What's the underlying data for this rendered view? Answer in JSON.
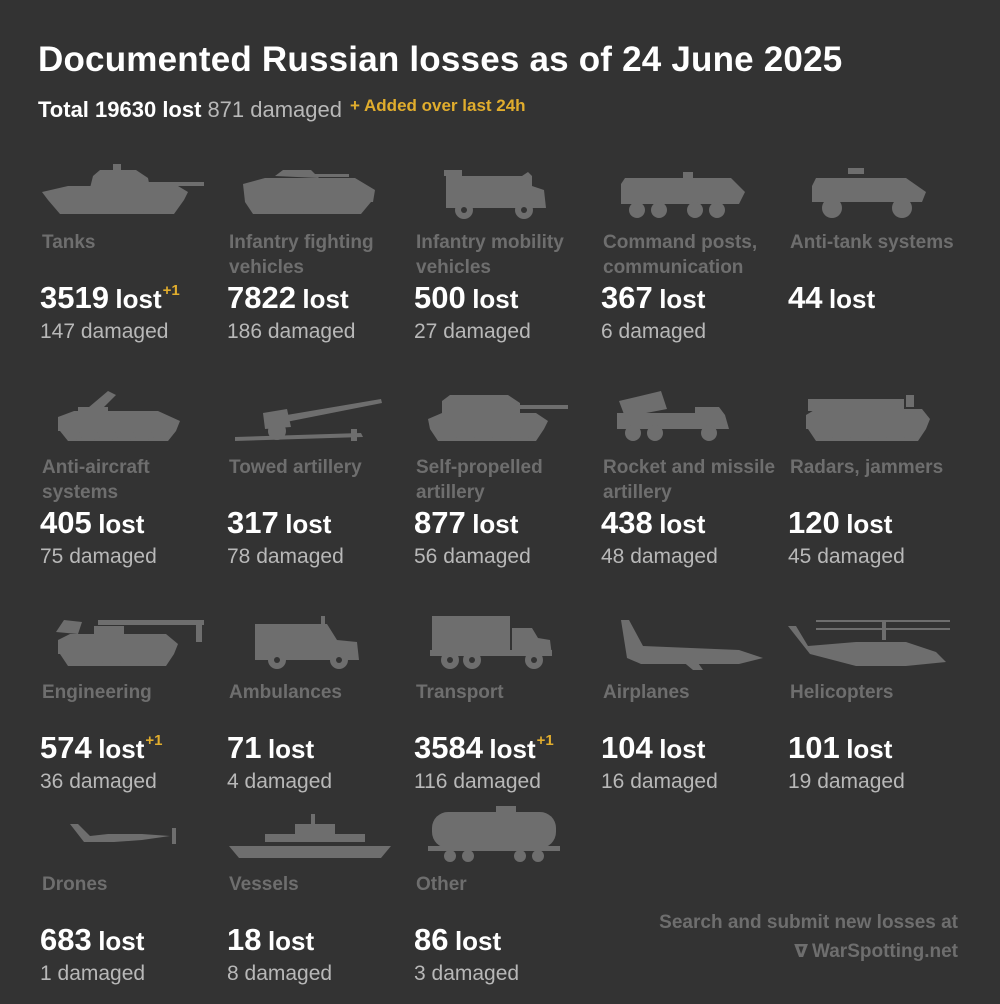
{
  "header": {
    "title": "Documented Russian losses as of 24 June 2025",
    "total_label": "Total 19630 lost",
    "total_damaged": "871 damaged",
    "added_note": "+ Added over last 24h"
  },
  "colors": {
    "background": "#333333",
    "text": "#ffffff",
    "muted": "#b8b8b8",
    "icon": "#6e6e6e",
    "accent": "#e1ad2d"
  },
  "categories": [
    {
      "label": "Tanks",
      "lost": "3519",
      "lost_word": "lost",
      "added": "+1",
      "damaged": "147 damaged",
      "icon": "tank-icon"
    },
    {
      "label": "Infantry fighting vehicles",
      "lost": "7822",
      "lost_word": "lost",
      "added": "",
      "damaged": "186 damaged",
      "icon": "ifv-icon"
    },
    {
      "label": "Infantry mobility vehicles",
      "lost": "500",
      "lost_word": "lost",
      "added": "",
      "damaged": "27 damaged",
      "icon": "imv-icon"
    },
    {
      "label": "Command posts, communication",
      "lost": "367",
      "lost_word": "lost",
      "added": "",
      "damaged": "6 damaged",
      "icon": "command-post-icon"
    },
    {
      "label": "Anti-tank systems",
      "lost": "44",
      "lost_word": "lost",
      "added": "",
      "damaged": "",
      "icon": "anti-tank-icon"
    },
    {
      "label": "Anti-aircraft systems",
      "lost": "405",
      "lost_word": "lost",
      "added": "",
      "damaged": "75 damaged",
      "icon": "anti-aircraft-icon"
    },
    {
      "label": "Towed artillery",
      "lost": "317",
      "lost_word": "lost",
      "added": "",
      "damaged": "78 damaged",
      "icon": "towed-artillery-icon"
    },
    {
      "label": "Self-propelled artillery",
      "lost": "877",
      "lost_word": "lost",
      "added": "",
      "damaged": "56 damaged",
      "icon": "spg-icon"
    },
    {
      "label": "Rocket and missile artillery",
      "lost": "438",
      "lost_word": "lost",
      "added": "",
      "damaged": "48 damaged",
      "icon": "rocket-artillery-icon"
    },
    {
      "label": "Radars, jammers",
      "lost": "120",
      "lost_word": "lost",
      "added": "",
      "damaged": "45 damaged",
      "icon": "radar-icon"
    },
    {
      "label": "Engineering",
      "lost": "574",
      "lost_word": "lost",
      "added": "+1",
      "damaged": "36 damaged",
      "icon": "engineering-icon"
    },
    {
      "label": "Ambulances",
      "lost": "71",
      "lost_word": "lost",
      "added": "",
      "damaged": "4 damaged",
      "icon": "ambulance-icon"
    },
    {
      "label": "Transport",
      "lost": "3584",
      "lost_word": "lost",
      "added": "+1",
      "damaged": "116 damaged",
      "icon": "truck-icon"
    },
    {
      "label": "Airplanes",
      "lost": "104",
      "lost_word": "lost",
      "added": "",
      "damaged": "16 damaged",
      "icon": "airplane-icon"
    },
    {
      "label": "Helicopters",
      "lost": "101",
      "lost_word": "lost",
      "added": "",
      "damaged": "19 damaged",
      "icon": "helicopter-icon"
    },
    {
      "label": "Drones",
      "lost": "683",
      "lost_word": "lost",
      "added": "",
      "damaged": "1 damaged",
      "icon": "drone-icon"
    },
    {
      "label": "Vessels",
      "lost": "18",
      "lost_word": "lost",
      "added": "",
      "damaged": "8 damaged",
      "icon": "ship-icon"
    },
    {
      "label": "Other",
      "lost": "86",
      "lost_word": "lost",
      "added": "",
      "damaged": "3 damaged",
      "icon": "tank-wagon-icon"
    }
  ],
  "footer": {
    "line1": "Search and submit new losses at",
    "logo": "ᐁ",
    "site": "WarSpotting.net"
  }
}
